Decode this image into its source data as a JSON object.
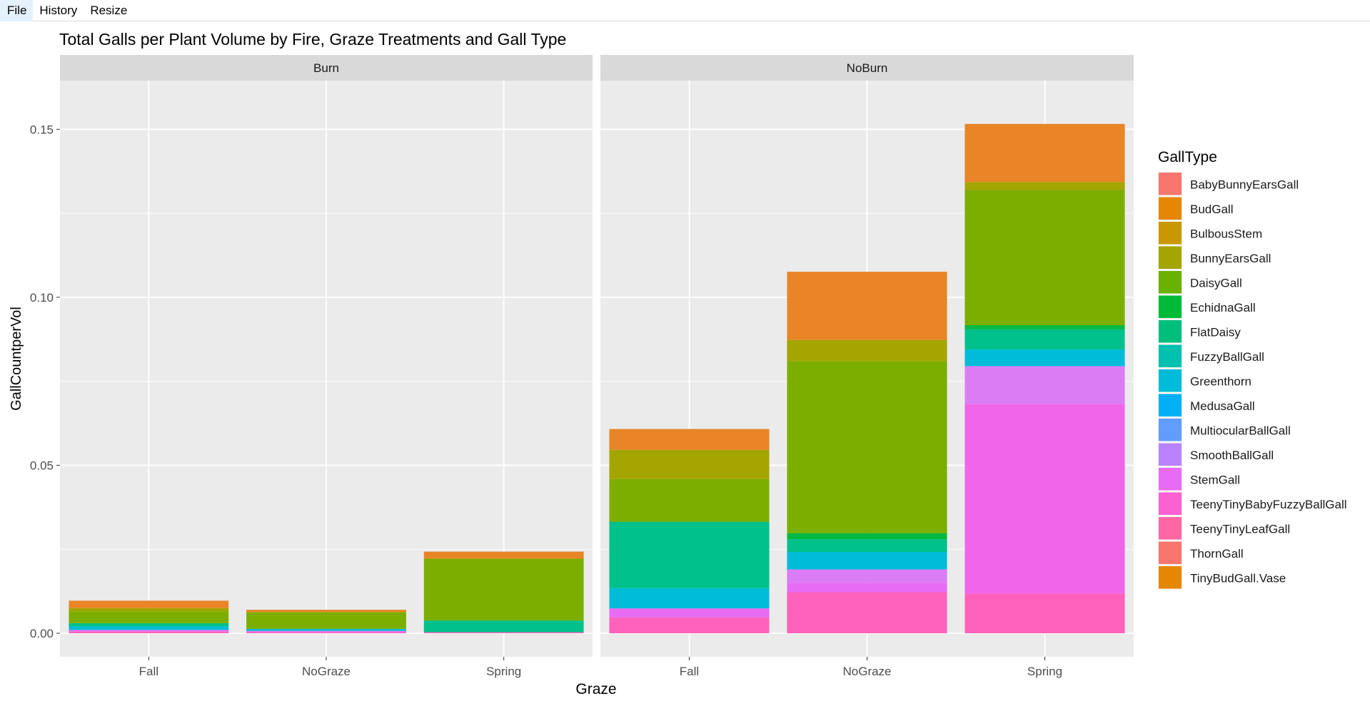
{
  "menu": {
    "items": [
      "File",
      "History",
      "Resize"
    ]
  },
  "chart_data": {
    "type": "bar",
    "stacked": true,
    "title": "Total Galls per Plant Volume by Fire, Graze Treatments and Gall Type",
    "xlabel": "Graze",
    "ylabel": "GallCountperVol",
    "ylim": [
      -0.007,
      0.1645
    ],
    "yticks": [
      0.0,
      0.05,
      0.1,
      0.15
    ],
    "ytick_labels": [
      "0.00",
      "0.05",
      "0.10",
      "0.15"
    ],
    "categories": [
      "Fall",
      "NoGraze",
      "Spring"
    ],
    "facets": [
      "Burn",
      "NoBurn"
    ],
    "legend": {
      "title": "GallType",
      "position": "right",
      "entries": [
        {
          "name": "BabyBunnyEarsGall",
          "color": "#F8766D"
        },
        {
          "name": "BudGall",
          "color": "#E58700"
        },
        {
          "name": "BulbousStem",
          "color": "#C99800"
        },
        {
          "name": "BunnyEarsGall",
          "color": "#A3A500"
        },
        {
          "name": "DaisyGall",
          "color": "#6BB100"
        },
        {
          "name": "EchidnaGall",
          "color": "#00BA38"
        },
        {
          "name": "FlatDaisy",
          "color": "#00BF7D"
        },
        {
          "name": "FuzzyBallGall",
          "color": "#00C0AF"
        },
        {
          "name": "Greenthorn",
          "color": "#00BCD8"
        },
        {
          "name": "MedusaGall",
          "color": "#00B0F6"
        },
        {
          "name": "MultiocularBallGall",
          "color": "#619CFF"
        },
        {
          "name": "SmoothBallGall",
          "color": "#B983FF"
        },
        {
          "name": "StemGall",
          "color": "#E76BF3"
        },
        {
          "name": "TeenyTinyBabyFuzzyBallGall",
          "color": "#FD61D1"
        },
        {
          "name": "TeenyTinyLeafGall",
          "color": "#FF67A4"
        },
        {
          "name": "ThornGall",
          "color": "#F8766D"
        },
        {
          "name": "TinyBudGall.Vase",
          "color": "#E58700"
        }
      ]
    },
    "bars": [
      {
        "facet": "Burn",
        "category": "Fall",
        "segments": [
          {
            "type": "TeenyTinyLeafGall",
            "value": 0.0005,
            "color": "#FF62BC"
          },
          {
            "type": "TeenyTinyBabyFuzzyBallGall",
            "value": 0.0005,
            "color": "#E76BF3"
          },
          {
            "type": "MedusaGall",
            "value": 0.001,
            "color": "#00BCD8"
          },
          {
            "type": "FuzzyBallGall",
            "value": 0.001,
            "color": "#00C08B"
          },
          {
            "type": "DaisyGall",
            "value": 0.0035,
            "color": "#7CAE00"
          },
          {
            "type": "BunnyEarsGall",
            "value": 0.001,
            "color": "#A3A500"
          },
          {
            "type": "BudGall",
            "value": 0.0022,
            "color": "#E88526"
          }
        ]
      },
      {
        "facet": "Burn",
        "category": "NoGraze",
        "segments": [
          {
            "type": "TeenyTinyLeafGall",
            "value": 0.0004,
            "color": "#FF62BC"
          },
          {
            "type": "TeenyTinyBabyFuzzyBallGall",
            "value": 0.0003,
            "color": "#E76BF3"
          },
          {
            "type": "MedusaGall",
            "value": 0.0006,
            "color": "#00BCD8"
          },
          {
            "type": "DaisyGall",
            "value": 0.005,
            "color": "#7CAE00"
          },
          {
            "type": "BudGall",
            "value": 0.0007,
            "color": "#E88526"
          }
        ]
      },
      {
        "facet": "Burn",
        "category": "Spring",
        "segments": [
          {
            "type": "TeenyTinyLeafGall",
            "value": 0.0003,
            "color": "#FF62BC"
          },
          {
            "type": "FuzzyBallGall",
            "value": 0.0035,
            "color": "#00C08B"
          },
          {
            "type": "DaisyGall",
            "value": 0.0184,
            "color": "#7CAE00"
          },
          {
            "type": "BudGall",
            "value": 0.0021,
            "color": "#E88526"
          }
        ]
      },
      {
        "facet": "NoBurn",
        "category": "Fall",
        "segments": [
          {
            "type": "TeenyTinyLeafGall",
            "value": 0.0047,
            "color": "#FF62BC"
          },
          {
            "type": "TeenyTinyBabyFuzzyBallGall",
            "value": 0.0027,
            "color": "#E76BF3"
          },
          {
            "type": "MedusaGall",
            "value": 0.006,
            "color": "#00BCD8"
          },
          {
            "type": "FuzzyBallGall",
            "value": 0.0198,
            "color": "#00C08B"
          },
          {
            "type": "DaisyGall",
            "value": 0.0127,
            "color": "#7CAE00"
          },
          {
            "type": "BunnyEarsGall",
            "value": 0.0087,
            "color": "#A3A500"
          },
          {
            "type": "BudGall",
            "value": 0.0062,
            "color": "#E88526"
          }
        ]
      },
      {
        "facet": "NoBurn",
        "category": "NoGraze",
        "segments": [
          {
            "type": "TeenyTinyLeafGall",
            "value": 0.0122,
            "color": "#FF62BC"
          },
          {
            "type": "TeenyTinyBabyFuzzyBallGall",
            "value": 0.0028,
            "color": "#E76BF3"
          },
          {
            "type": "StemGall",
            "value": 0.004,
            "color": "#DA7DF5"
          },
          {
            "type": "MedusaGall",
            "value": 0.0052,
            "color": "#00BCD8"
          },
          {
            "type": "FuzzyBallGall",
            "value": 0.0038,
            "color": "#00C08B"
          },
          {
            "type": "FlatDaisy",
            "value": 0.0018,
            "color": "#00B93E"
          },
          {
            "type": "DaisyGall",
            "value": 0.0512,
            "color": "#7CAE00"
          },
          {
            "type": "BunnyEarsGall",
            "value": 0.0063,
            "color": "#A3A500"
          },
          {
            "type": "BudGall",
            "value": 0.0203,
            "color": "#E88526"
          }
        ]
      },
      {
        "facet": "NoBurn",
        "category": "Spring",
        "segments": [
          {
            "type": "TeenyTinyLeafGall",
            "value": 0.0118,
            "color": "#FF62BC"
          },
          {
            "type": "TeenyTinyBabyFuzzyBallGall",
            "value": 0.0565,
            "color": "#F066E9"
          },
          {
            "type": "StemGall",
            "value": 0.0112,
            "color": "#DA7DF5"
          },
          {
            "type": "MedusaGall",
            "value": 0.005,
            "color": "#00BCD8"
          },
          {
            "type": "FuzzyBallGall",
            "value": 0.006,
            "color": "#00C08B"
          },
          {
            "type": "FlatDaisy",
            "value": 0.0012,
            "color": "#00B93E"
          },
          {
            "type": "DaisyGall",
            "value": 0.0403,
            "color": "#7CAE00"
          },
          {
            "type": "BunnyEarsGall",
            "value": 0.0023,
            "color": "#A3A500"
          },
          {
            "type": "BudGall",
            "value": 0.0173,
            "color": "#E88526"
          }
        ]
      }
    ],
    "grid": true
  }
}
